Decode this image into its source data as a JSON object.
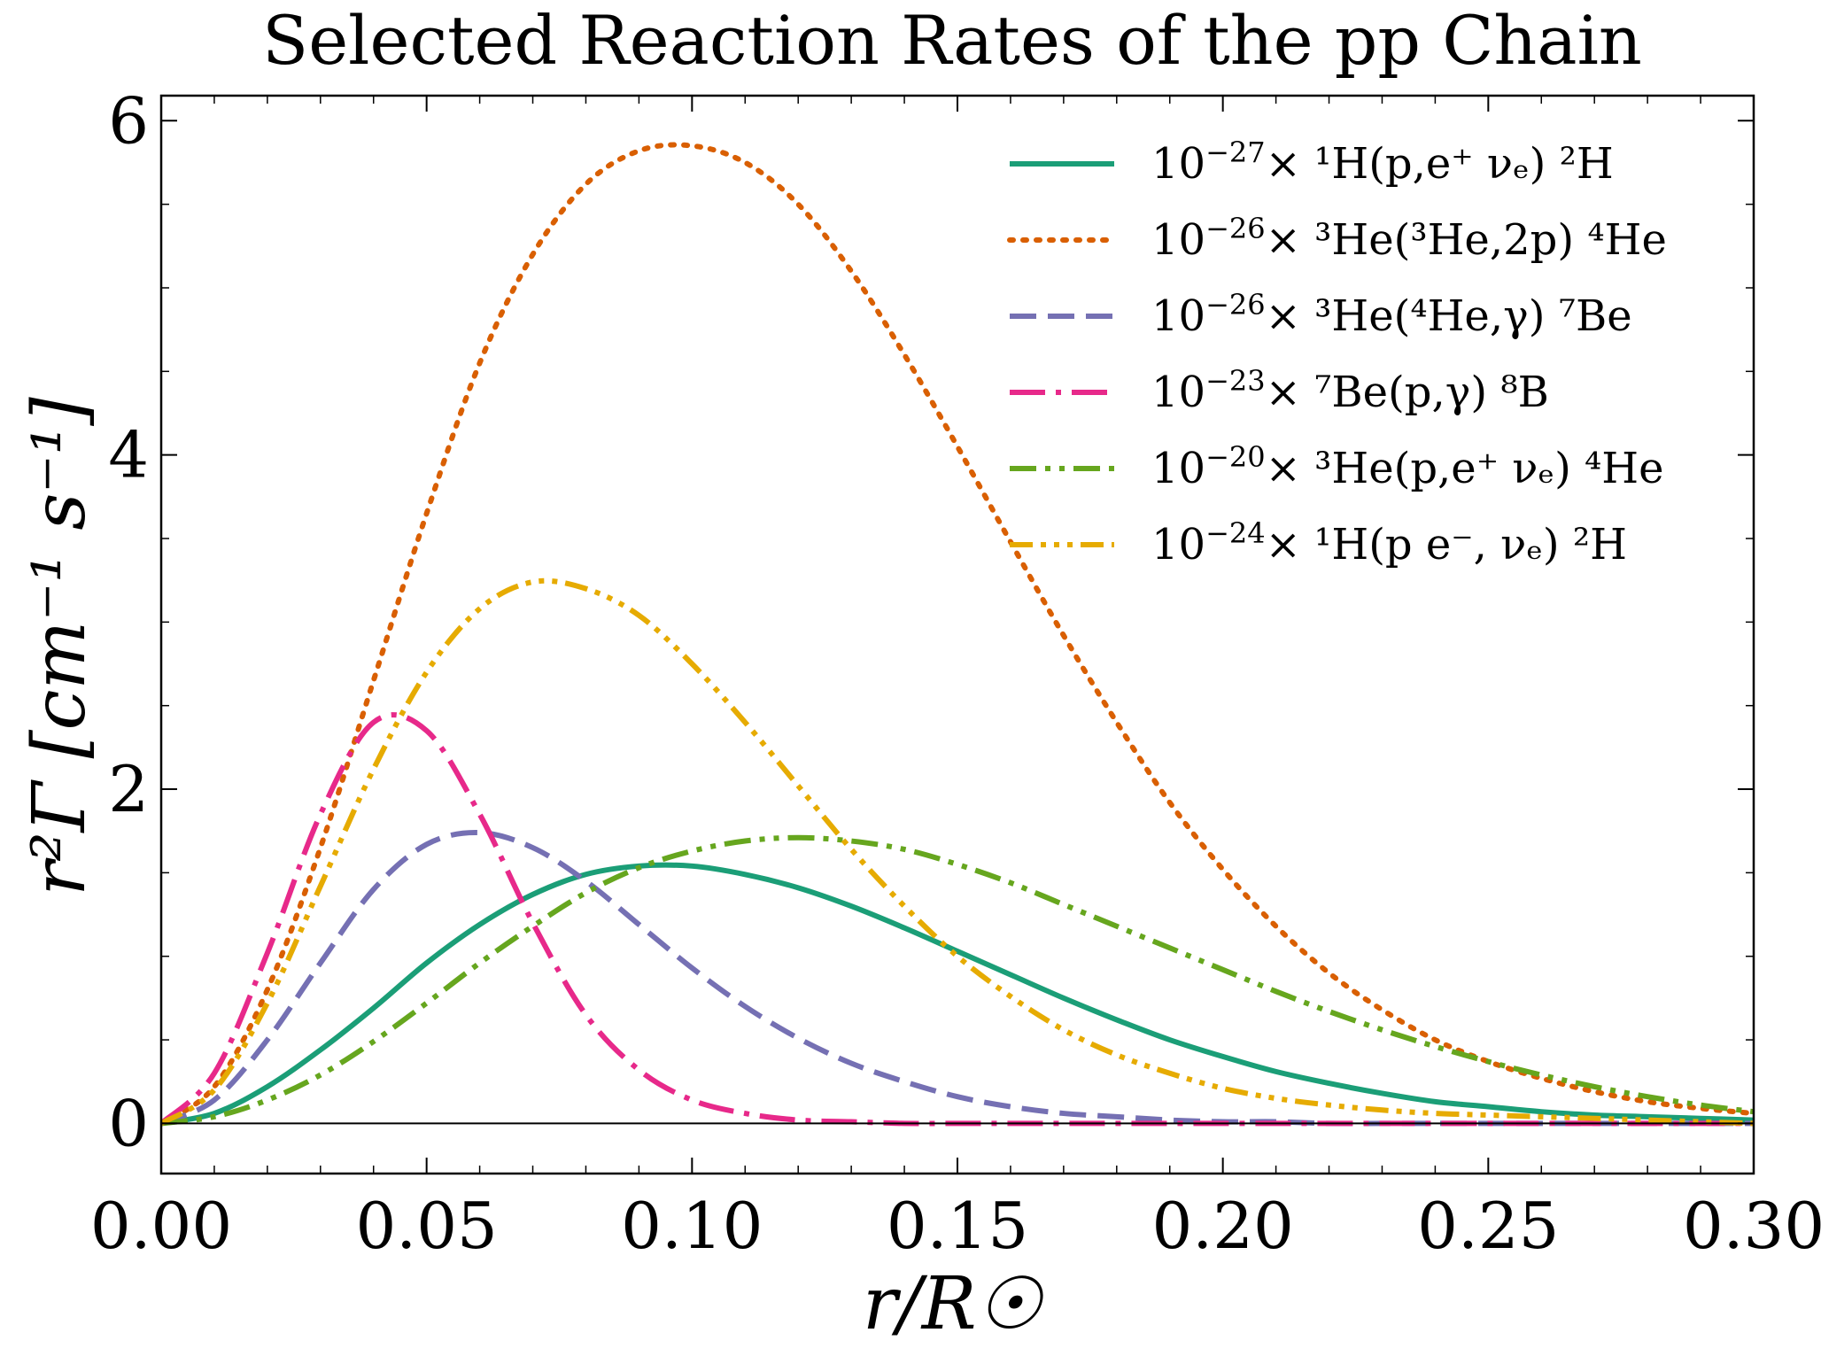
{
  "chart_data": {
    "type": "line",
    "title": "Selected Reaction Rates of the pp Chain",
    "xlabel": "r/R☉",
    "ylabel": "r²Γ [cm⁻¹ s⁻¹]",
    "xlim": [
      0.0,
      0.3
    ],
    "ylim": [
      -0.3,
      6.15
    ],
    "x_ticks": [
      0.0,
      0.05,
      0.1,
      0.15,
      0.2,
      0.25,
      0.3
    ],
    "x_tick_labels": [
      "0.00",
      "0.05",
      "0.10",
      "0.15",
      "0.20",
      "0.25",
      "0.30"
    ],
    "y_ticks": [
      0,
      2,
      4,
      6
    ],
    "y_tick_labels": [
      "0",
      "2",
      "4",
      "6"
    ],
    "grid": false,
    "legend_position": "top-right",
    "x": [
      0.0,
      0.01,
      0.02,
      0.03,
      0.04,
      0.05,
      0.06,
      0.07,
      0.08,
      0.09,
      0.1,
      0.11,
      0.12,
      0.13,
      0.14,
      0.15,
      0.16,
      0.17,
      0.18,
      0.19,
      0.2,
      0.21,
      0.22,
      0.23,
      0.24,
      0.25,
      0.26,
      0.27,
      0.28,
      0.29,
      0.3
    ],
    "series": [
      {
        "name": "10⁻²⁷× ¹H(p,e⁺ νₑ) ²H",
        "legend_scale": "10",
        "legend_exp": "−27",
        "legend_rest": "× ¹H(p,e⁺ νₑ) ²H",
        "color": "#1b9e77",
        "dash": "solid",
        "values": [
          0.0,
          0.06,
          0.22,
          0.44,
          0.69,
          0.96,
          1.19,
          1.37,
          1.49,
          1.54,
          1.54,
          1.49,
          1.41,
          1.3,
          1.17,
          1.03,
          0.89,
          0.75,
          0.62,
          0.5,
          0.4,
          0.31,
          0.24,
          0.18,
          0.13,
          0.1,
          0.07,
          0.05,
          0.04,
          0.03,
          0.02
        ]
      },
      {
        "name": "10⁻²⁶× ³He(³He,2p) ⁴He",
        "legend_scale": "10",
        "legend_exp": "−26",
        "legend_rest": "× ³He(³He,2p) ⁴He",
        "color": "#d95f02",
        "dash": "dotted",
        "values": [
          0.0,
          0.22,
          0.8,
          1.65,
          2.65,
          3.65,
          4.55,
          5.2,
          5.62,
          5.82,
          5.85,
          5.75,
          5.5,
          5.1,
          4.6,
          4.05,
          3.48,
          2.92,
          2.4,
          1.92,
          1.52,
          1.18,
          0.9,
          0.68,
          0.5,
          0.37,
          0.27,
          0.19,
          0.13,
          0.09,
          0.06
        ]
      },
      {
        "name": "10⁻²⁶× ³He(⁴He,γ) ⁷Be",
        "legend_scale": "10",
        "legend_exp": "−26",
        "legend_rest": "× ³He(⁴He,γ) ⁷Be",
        "color": "#7570b3",
        "dash": "dashed",
        "values": [
          0.0,
          0.14,
          0.5,
          0.96,
          1.4,
          1.67,
          1.74,
          1.65,
          1.45,
          1.19,
          0.93,
          0.7,
          0.51,
          0.36,
          0.25,
          0.16,
          0.1,
          0.06,
          0.04,
          0.02,
          0.01,
          0.01,
          0.0,
          0.0,
          0.0,
          0.0,
          0.0,
          0.0,
          0.0,
          0.0,
          0.0
        ]
      },
      {
        "name": "10⁻²³× ⁷Be(p,γ) ⁸B",
        "legend_scale": "10",
        "legend_exp": "−23",
        "legend_rest": "× ⁷Be(p,γ) ⁸B",
        "color": "#e7298a",
        "dash": "dashdot",
        "values": [
          0.0,
          0.3,
          1.02,
          1.85,
          2.4,
          2.35,
          1.85,
          1.2,
          0.65,
          0.32,
          0.14,
          0.06,
          0.02,
          0.01,
          0.0,
          0.0,
          0.0,
          0.0,
          0.0,
          0.0,
          0.0,
          0.0,
          0.0,
          0.0,
          0.0,
          0.0,
          0.0,
          0.0,
          0.0,
          0.0,
          0.0
        ]
      },
      {
        "name": "10⁻²⁰× ³He(p,e⁺ νₑ) ⁴He",
        "legend_scale": "10",
        "legend_exp": "−20",
        "legend_rest": "× ³He(p,e⁺ νₑ) ⁴He",
        "color": "#66a61e",
        "dash": "dashdotdot",
        "values": [
          0.0,
          0.04,
          0.14,
          0.29,
          0.49,
          0.72,
          0.96,
          1.18,
          1.38,
          1.53,
          1.63,
          1.69,
          1.71,
          1.69,
          1.64,
          1.55,
          1.44,
          1.31,
          1.18,
          1.05,
          0.92,
          0.79,
          0.67,
          0.56,
          0.46,
          0.37,
          0.29,
          0.22,
          0.16,
          0.11,
          0.07
        ]
      },
      {
        "name": "10⁻²⁴× ¹H(p e⁻, νₑ) ²H",
        "legend_scale": "10",
        "legend_exp": "−24",
        "legend_rest": "× ¹H(p e⁻, νₑ) ²H",
        "color": "#e6ab02",
        "dash": "dashdotdotdot",
        "values": [
          0.0,
          0.2,
          0.72,
          1.42,
          2.12,
          2.7,
          3.08,
          3.24,
          3.2,
          3.04,
          2.75,
          2.4,
          2.02,
          1.64,
          1.3,
          1.0,
          0.76,
          0.56,
          0.41,
          0.3,
          0.21,
          0.15,
          0.11,
          0.08,
          0.06,
          0.05,
          0.04,
          0.03,
          0.02,
          0.01,
          0.0
        ]
      }
    ]
  }
}
